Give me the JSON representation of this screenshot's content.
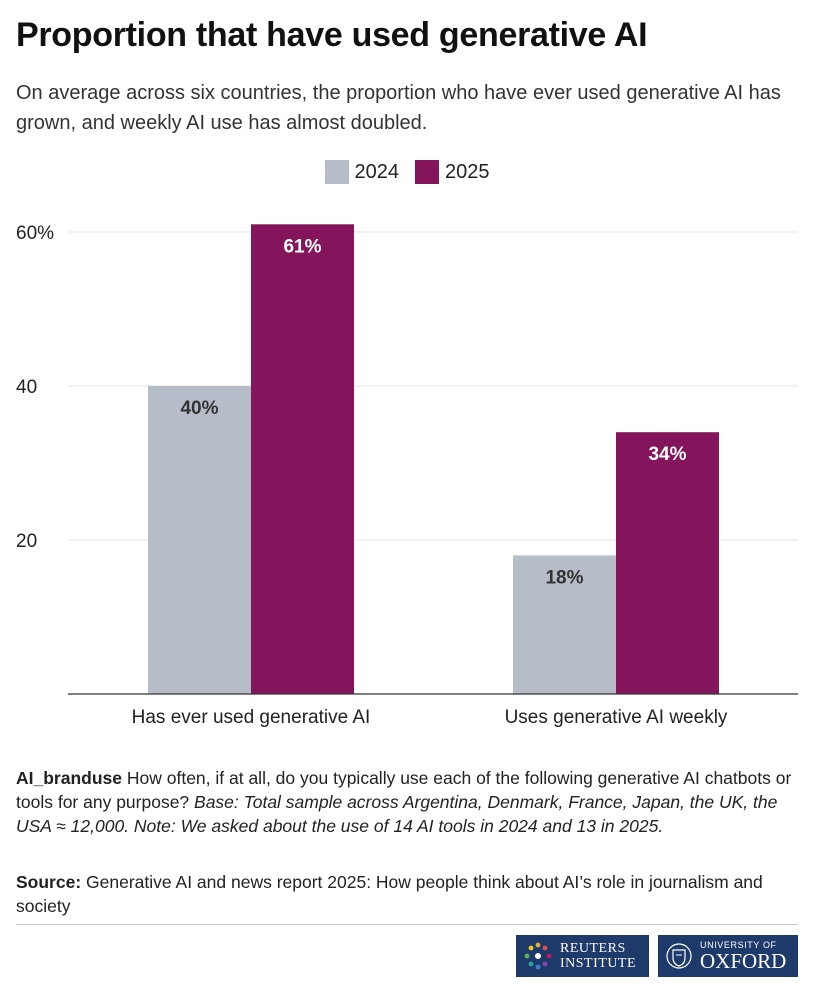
{
  "title": "Proportion that have used generative AI",
  "subtitle": "On average across six countries, the proportion who have ever used generative AI has grown, and weekly AI use has almost doubled.",
  "legend": [
    {
      "label": "2024",
      "color": "#b7bcc9"
    },
    {
      "label": "2025",
      "color": "#84155c"
    }
  ],
  "chart_data": {
    "type": "bar",
    "title": "Proportion that have used generative AI",
    "categories": [
      "Has ever used generative AI",
      "Uses generative AI weekly"
    ],
    "series": [
      {
        "name": "2024",
        "values": [
          40,
          18
        ],
        "labels": [
          "40%",
          "18%"
        ],
        "color": "#b7bcc9",
        "label_color": "#333333"
      },
      {
        "name": "2025",
        "values": [
          61,
          34
        ],
        "labels": [
          "61%",
          "34%"
        ],
        "color": "#84155c",
        "label_color": "#ffffff"
      }
    ],
    "ylim": [
      0,
      65
    ],
    "yticks": [
      20,
      40,
      60
    ],
    "ytick_labels": [
      "20",
      "40",
      "60%"
    ],
    "grid": true,
    "xlabel": "",
    "ylabel": "",
    "legend_position": "top-center"
  },
  "note": {
    "code": "AI_branduse",
    "question": " How often, if at all, do you typically use each of the following generative AI chatbots or tools for any purpose? ",
    "base": "Base: Total sample across Argentina, Denmark, France, Japan, the UK, the USA ≈ 12,000. Note: We asked about the use of 14 AI tools in 2024 and 13 in 2025."
  },
  "source": {
    "label": "Source:",
    "text": " Generative AI and news report 2025: How people think about AI’s role in journalism and society"
  },
  "logos": {
    "reuters_line1": "REUTERS",
    "reuters_line2": "INSTITUTE",
    "oxford_line1": "UNIVERSITY OF",
    "oxford_line2": "OXFORD"
  }
}
